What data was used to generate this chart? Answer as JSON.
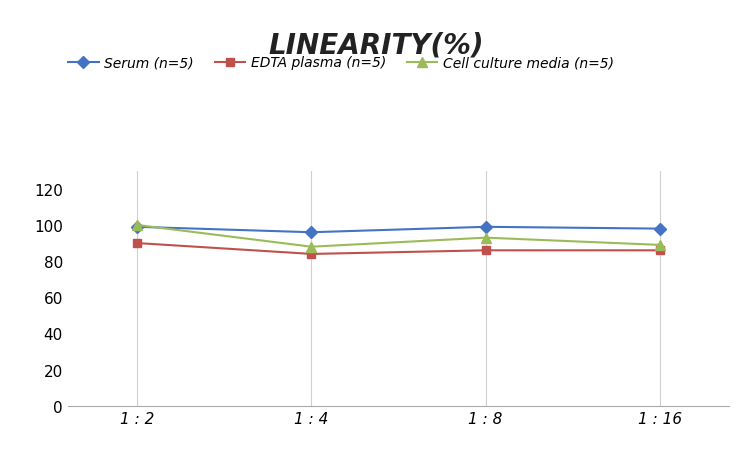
{
  "title": "LINEARITY(%)",
  "x_labels": [
    "1 : 2",
    "1 : 4",
    "1 : 8",
    "1 : 16"
  ],
  "x_positions": [
    0,
    1,
    2,
    3
  ],
  "series": [
    {
      "label": "Serum (n=5)",
      "values": [
        99,
        96,
        99,
        98
      ],
      "color": "#4472C4",
      "marker": "D",
      "marker_color": "#4472C4",
      "linewidth": 1.5,
      "markersize": 6
    },
    {
      "label": "EDTA plasma (n=5)",
      "values": [
        90,
        84,
        86,
        86
      ],
      "color": "#C0504D",
      "marker": "s",
      "marker_color": "#C0504D",
      "linewidth": 1.5,
      "markersize": 6
    },
    {
      "label": "Cell culture media (n=5)",
      "values": [
        100,
        88,
        93,
        89
      ],
      "color": "#9BBB59",
      "marker": "^",
      "marker_color": "#9BBB59",
      "linewidth": 1.5,
      "markersize": 7
    }
  ],
  "ylim": [
    0,
    130
  ],
  "yticks": [
    0,
    20,
    40,
    60,
    80,
    100,
    120
  ],
  "grid_color": "#D0D0D0",
  "background_color": "#FFFFFF",
  "title_fontsize": 20,
  "tick_fontsize": 11,
  "legend_fontsize": 10
}
